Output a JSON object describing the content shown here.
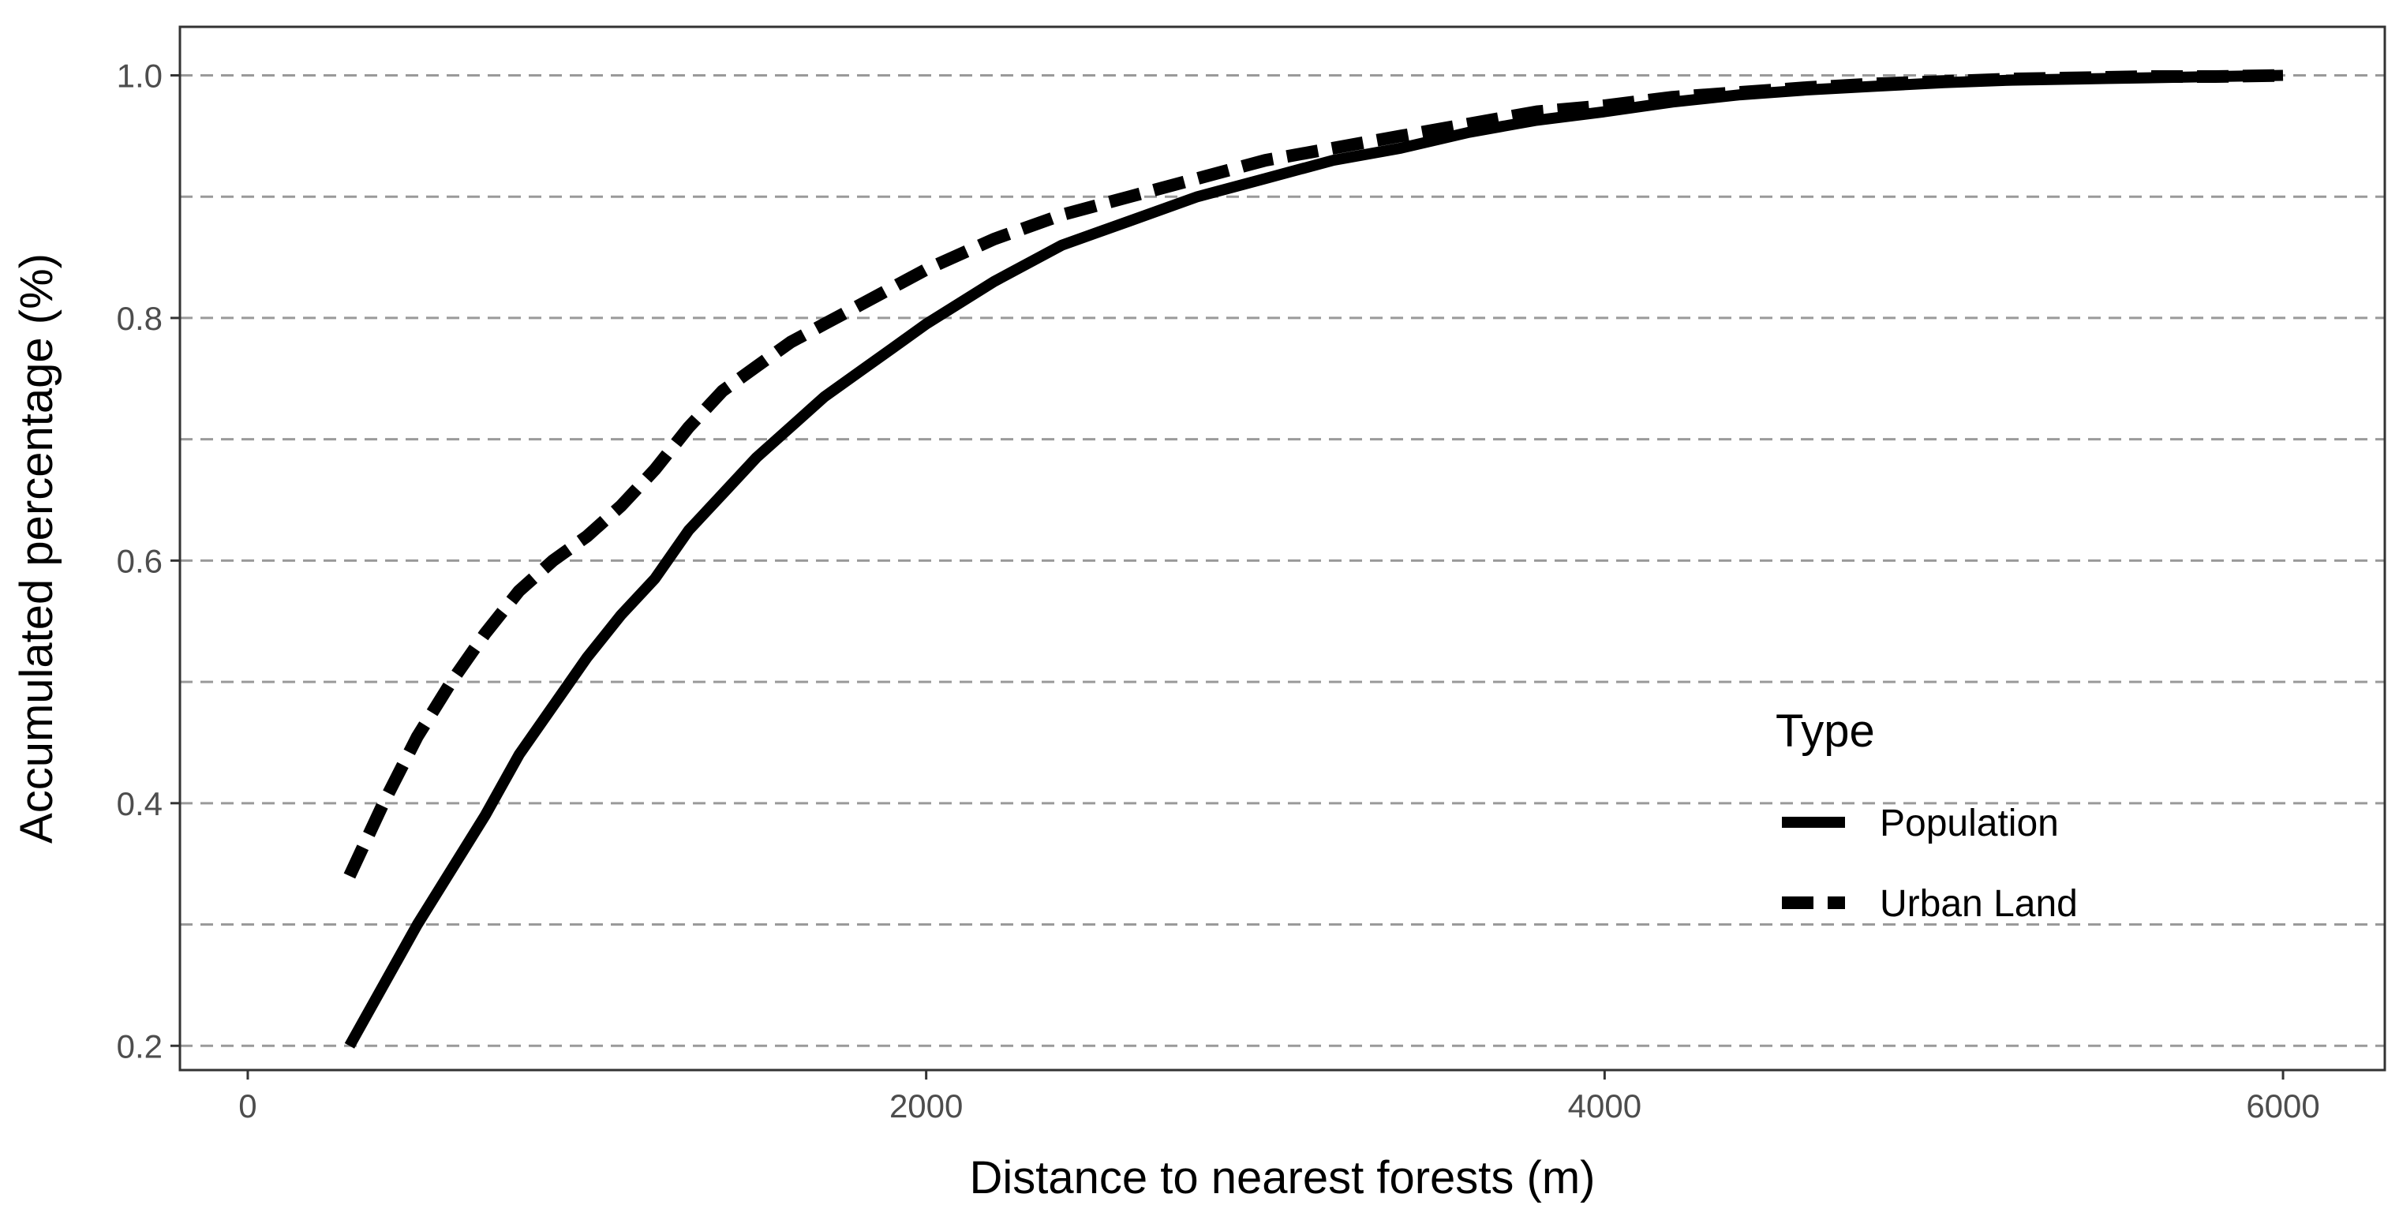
{
  "chart_data": {
    "type": "line",
    "title": "",
    "xlabel": "Distance to nearest forests (m)",
    "ylabel": "Accumulated percentage (%)",
    "xlim": [
      -200,
      6300
    ],
    "ylim": [
      0.18,
      1.04
    ],
    "x_ticks": [
      0,
      2000,
      4000,
      6000
    ],
    "x_tick_labels": [
      "0",
      "2000",
      "4000",
      "6000"
    ],
    "y_ticks": [
      0.2,
      0.4,
      0.6,
      0.8,
      1.0
    ],
    "y_tick_labels": [
      "0.2",
      "0.4",
      "0.6",
      "0.8",
      "1.0"
    ],
    "y_gridlines": [
      0.2,
      0.3,
      0.4,
      0.5,
      0.6,
      0.7,
      0.8,
      0.9,
      1.0
    ],
    "grid": "horizontal dashed",
    "legend": {
      "title": "Type",
      "position": "right"
    },
    "series": [
      {
        "name": "Population",
        "line_style": "solid",
        "color": "#000000",
        "x": [
          300,
          500,
          700,
          800,
          900,
          1000,
          1100,
          1200,
          1300,
          1400,
          1500,
          1600,
          1700,
          1800,
          1900,
          2000,
          2200,
          2400,
          2600,
          2800,
          3000,
          3200,
          3400,
          3600,
          3800,
          4000,
          4200,
          4400,
          4600,
          4800,
          5000,
          5200,
          5400,
          5600,
          5800,
          6000
        ],
        "values": [
          0.2,
          0.3,
          0.39,
          0.44,
          0.48,
          0.52,
          0.555,
          0.585,
          0.625,
          0.655,
          0.685,
          0.71,
          0.735,
          0.755,
          0.775,
          0.795,
          0.83,
          0.86,
          0.88,
          0.9,
          0.915,
          0.93,
          0.94,
          0.953,
          0.963,
          0.97,
          0.978,
          0.984,
          0.988,
          0.991,
          0.994,
          0.996,
          0.997,
          0.998,
          0.999,
          1.0
        ]
      },
      {
        "name": "Urban Land",
        "line_style": "dashed",
        "color": "#000000",
        "x": [
          300,
          400,
          500,
          600,
          700,
          800,
          900,
          1000,
          1100,
          1200,
          1300,
          1400,
          1500,
          1600,
          1700,
          1800,
          2000,
          2200,
          2400,
          2600,
          2800,
          3000,
          3200,
          3400,
          3600,
          3800,
          4000,
          4200,
          4400,
          4600,
          4800,
          5000,
          5200,
          5400,
          5600,
          5800,
          6000
        ],
        "values": [
          0.34,
          0.4,
          0.455,
          0.5,
          0.54,
          0.575,
          0.6,
          0.62,
          0.645,
          0.675,
          0.71,
          0.74,
          0.76,
          0.78,
          0.795,
          0.81,
          0.84,
          0.865,
          0.885,
          0.9,
          0.915,
          0.93,
          0.94,
          0.95,
          0.96,
          0.97,
          0.975,
          0.982,
          0.986,
          0.99,
          0.993,
          0.995,
          0.997,
          0.998,
          0.999,
          0.999,
          1.0
        ]
      }
    ]
  }
}
